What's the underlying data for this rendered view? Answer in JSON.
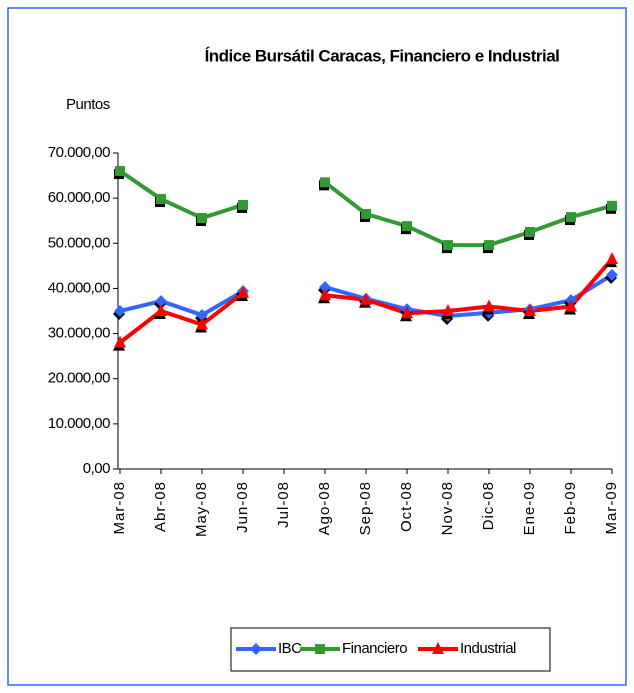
{
  "chart_data": {
    "type": "line",
    "title": "Índice Bursátil Caracas, Financiero e Industrial",
    "y_label": "Puntos",
    "categories": [
      "Mar-08",
      "Abr-08",
      "May-08",
      "Jun-08",
      "Jul-08",
      "Ago-08",
      "Sep-08",
      "Oct-08",
      "Nov-08",
      "Dic-08",
      "Ene-09",
      "Feb-09",
      "Mar-09"
    ],
    "series": [
      {
        "name": "IBC",
        "color": "#3366ff",
        "marker": "diamond",
        "values": [
          35000,
          37200,
          34100,
          39400,
          null,
          40300,
          37700,
          35400,
          33900,
          34600,
          35400,
          37400,
          43000
        ]
      },
      {
        "name": "Financiero",
        "color": "#339933",
        "marker": "square",
        "values": [
          66000,
          59800,
          55600,
          58500,
          null,
          63500,
          56500,
          53800,
          49600,
          49600,
          52500,
          55800,
          58300
        ]
      },
      {
        "name": "Industrial",
        "color": "#ff0000",
        "marker": "triangle",
        "values": [
          28000,
          35000,
          32000,
          39000,
          null,
          38500,
          37500,
          34500,
          35000,
          36000,
          35000,
          36000,
          46500
        ]
      }
    ],
    "ylim": [
      0,
      70000
    ],
    "yticks": [
      {
        "value": 0,
        "label": "0,00"
      },
      {
        "value": 10000,
        "label": "10.000,00"
      },
      {
        "value": 20000,
        "label": "20.000,00"
      },
      {
        "value": 30000,
        "label": "30.000,00"
      },
      {
        "value": 40000,
        "label": "40.000,00"
      },
      {
        "value": 50000,
        "label": "50.000,00"
      },
      {
        "value": 60000,
        "label": "60.000,00"
      },
      {
        "value": 70000,
        "label": "70.000,00"
      }
    ],
    "legend": "bottom"
  }
}
